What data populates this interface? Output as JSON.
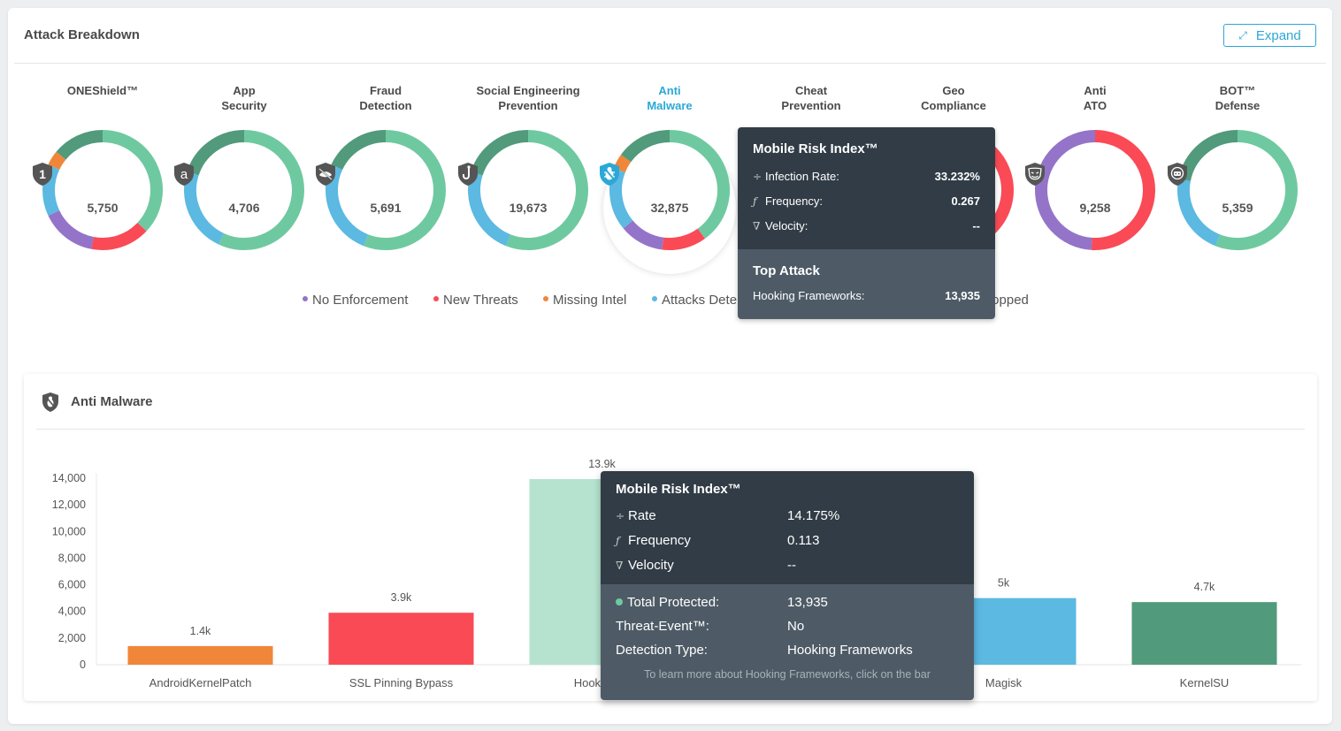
{
  "header": {
    "title": "Attack Breakdown",
    "expand_label": "Expand",
    "expand_icon": "expand-diagonal-arrow-icon"
  },
  "colors": {
    "accent": "#2ba8d6",
    "protected": "#6fc9a0",
    "stopped": "#519a7b",
    "attacks_detected": "#5bb9e2",
    "missing_intel": "#f0863a",
    "new_threats": "#fa4a56",
    "no_enforcement": "#9474c8"
  },
  "categories": [
    {
      "label": "ONEShield™",
      "icon": "oneshield-number-one-shield-icon",
      "value": "5,750",
      "active": false,
      "segments": [
        {
          "color": "#6fc9a0",
          "frac": 0.37
        },
        {
          "color": "#fa4a56",
          "frac": 0.16
        },
        {
          "color": "#9474c8",
          "frac": 0.15
        },
        {
          "color": "#5bb9e2",
          "frac": 0.14
        },
        {
          "color": "#f0863a",
          "frac": 0.04
        },
        {
          "color": "#519a7b",
          "frac": 0.14
        }
      ]
    },
    {
      "label": "App\nSecurity",
      "icon": "app-security-shield-icon",
      "value": "4,706",
      "active": false,
      "segments": [
        {
          "color": "#6fc9a0",
          "frac": 0.57
        },
        {
          "color": "#5bb9e2",
          "frac": 0.23
        },
        {
          "color": "#519a7b",
          "frac": 0.2
        }
      ]
    },
    {
      "label": "Fraud\nDetection",
      "icon": "fraud-detection-shield-icon",
      "value": "5,691",
      "active": false,
      "segments": [
        {
          "color": "#6fc9a0",
          "frac": 0.56
        },
        {
          "color": "#5bb9e2",
          "frac": 0.26
        },
        {
          "color": "#519a7b",
          "frac": 0.18
        }
      ]
    },
    {
      "label": "Social Engineering\nPrevention",
      "icon": "hook-shield-icon",
      "value": "19,673",
      "active": false,
      "segments": [
        {
          "color": "#6fc9a0",
          "frac": 0.56
        },
        {
          "color": "#5bb9e2",
          "frac": 0.24
        },
        {
          "color": "#519a7b",
          "frac": 0.2
        }
      ]
    },
    {
      "label": "Anti\nMalware",
      "icon": "bug-shield-icon",
      "value": "32,875",
      "active": true,
      "segments": [
        {
          "color": "#6fc9a0",
          "frac": 0.4
        },
        {
          "color": "#fa4a56",
          "frac": 0.12
        },
        {
          "color": "#9474c8",
          "frac": 0.12
        },
        {
          "color": "#5bb9e2",
          "frac": 0.17
        },
        {
          "color": "#f0863a",
          "frac": 0.04
        },
        {
          "color": "#519a7b",
          "frac": 0.15
        }
      ]
    },
    {
      "label": "Cheat\nPrevention",
      "icon": "cheat-prevention-shield-icon",
      "value": "",
      "active": false,
      "segments": [
        {
          "color": "#fa4a56",
          "frac": 1.0
        }
      ]
    },
    {
      "label": "Geo\nCompliance",
      "icon": "geo-compliance-shield-icon",
      "value": "",
      "active": false,
      "segments": [
        {
          "color": "#fa4a56",
          "frac": 1.0
        }
      ]
    },
    {
      "label": "Anti\nATO",
      "icon": "mask-shield-icon",
      "value": "9,258",
      "active": false,
      "segments": [
        {
          "color": "#fa4a56",
          "frac": 0.51
        },
        {
          "color": "#9474c8",
          "frac": 0.49
        }
      ]
    },
    {
      "label": "BOT™\nDefense",
      "icon": "robot-shield-icon",
      "value": "5,359",
      "active": false,
      "segments": [
        {
          "color": "#6fc9a0",
          "frac": 0.56
        },
        {
          "color": "#5bb9e2",
          "frac": 0.22
        },
        {
          "color": "#519a7b",
          "frac": 0.22
        }
      ]
    }
  ],
  "legend": [
    {
      "label": "No Enforcement",
      "color": "#9474c8"
    },
    {
      "label": "New Threats",
      "color": "#fa4a56"
    },
    {
      "label": "Missing Intel",
      "color": "#f0863a"
    },
    {
      "label": "Attacks Dete",
      "color": "#5bb9e2"
    },
    {
      "label": "topped",
      "color": ""
    }
  ],
  "tooltip_category": {
    "title": "Mobile Risk Index™",
    "rows": [
      {
        "icon": "fraction-icon",
        "label": "Infection Rate:",
        "value": "33.232%"
      },
      {
        "icon": "function-f-icon",
        "label": "Frequency:",
        "value": "0.267"
      },
      {
        "icon": "nabla-icon",
        "label": "Velocity:",
        "value": "--"
      }
    ],
    "top_attack_title": "Top Attack",
    "top_attack_label": "Hooking Frameworks:",
    "top_attack_value": "13,935"
  },
  "detail": {
    "title": "Anti Malware",
    "icon": "bug-shield-icon"
  },
  "chart_data": {
    "type": "bar",
    "title": "Anti Malware",
    "xlabel": "",
    "ylabel": "",
    "ylim": [
      0,
      14000
    ],
    "yticks": [
      0,
      2000,
      4000,
      6000,
      8000,
      10000,
      12000,
      14000
    ],
    "ytick_labels": [
      "0",
      "2,000",
      "4,000",
      "6,000",
      "8,000",
      "10,000",
      "12,000",
      "14,000"
    ],
    "categories": [
      "AndroidKernelPatch",
      "SSL Pinning Bypass",
      "Hooking Frameworks",
      "",
      "Magisk",
      "KernelSU"
    ],
    "category_labels_visible": [
      "AndroidKernelPatch",
      "SSL Pinning Bypass",
      "Hooking Fr",
      "",
      "Magisk",
      "KernelSU"
    ],
    "values": [
      1400,
      3900,
      13935,
      null,
      5000,
      4700
    ],
    "data_labels": [
      "1.4k",
      "3.9k",
      "13.9k",
      "",
      "5k",
      "4.7k"
    ],
    "colors": [
      "#f0863a",
      "#fa4a56",
      "#b5e3cf",
      "",
      "#5bb9e2",
      "#519a7b"
    ],
    "grid": false,
    "legend": "none"
  },
  "tooltip_bar": {
    "title": "Mobile Risk Index™",
    "rows": [
      {
        "icon": "fraction-icon",
        "label": "Rate",
        "value": "14.175%"
      },
      {
        "icon": "function-f-icon",
        "label": "Frequency",
        "value": "0.113"
      },
      {
        "icon": "nabla-icon",
        "label": "Velocity",
        "value": "--"
      }
    ],
    "details": [
      {
        "label": "Total Protected:",
        "value": "13,935",
        "dot_color": "#6fc9a0"
      },
      {
        "label": "Threat-Event™:",
        "value": "No"
      },
      {
        "label": "Detection Type:",
        "value": "Hooking Frameworks"
      }
    ],
    "hint": "To learn more about Hooking Frameworks, click on the bar"
  }
}
